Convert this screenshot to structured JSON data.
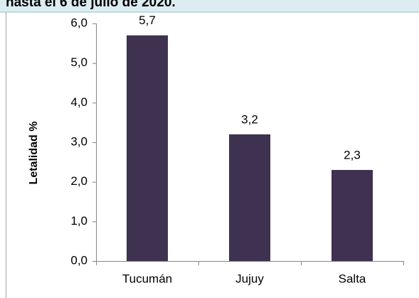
{
  "chart_data": {
    "type": "bar",
    "title": "hasta el 6 de julio de 2020.",
    "y_label": "Letalidad %",
    "categories": [
      "Tucumán",
      "Jujuy",
      "Salta"
    ],
    "values": [
      5.7,
      3.2,
      2.3
    ],
    "value_labels": [
      "5,7",
      "3,2",
      "2,3"
    ],
    "color": "#3f3150",
    "ylim": [
      0,
      6
    ],
    "yticks": [
      {
        "value": 0,
        "label": "0,0"
      },
      {
        "value": 1,
        "label": "1,0"
      },
      {
        "value": 2,
        "label": "2,0"
      },
      {
        "value": 3,
        "label": "3,0"
      },
      {
        "value": 4,
        "label": "4,0"
      },
      {
        "value": 5,
        "label": "5,0"
      },
      {
        "value": 6,
        "label": "6,0"
      }
    ],
    "grid": false
  }
}
